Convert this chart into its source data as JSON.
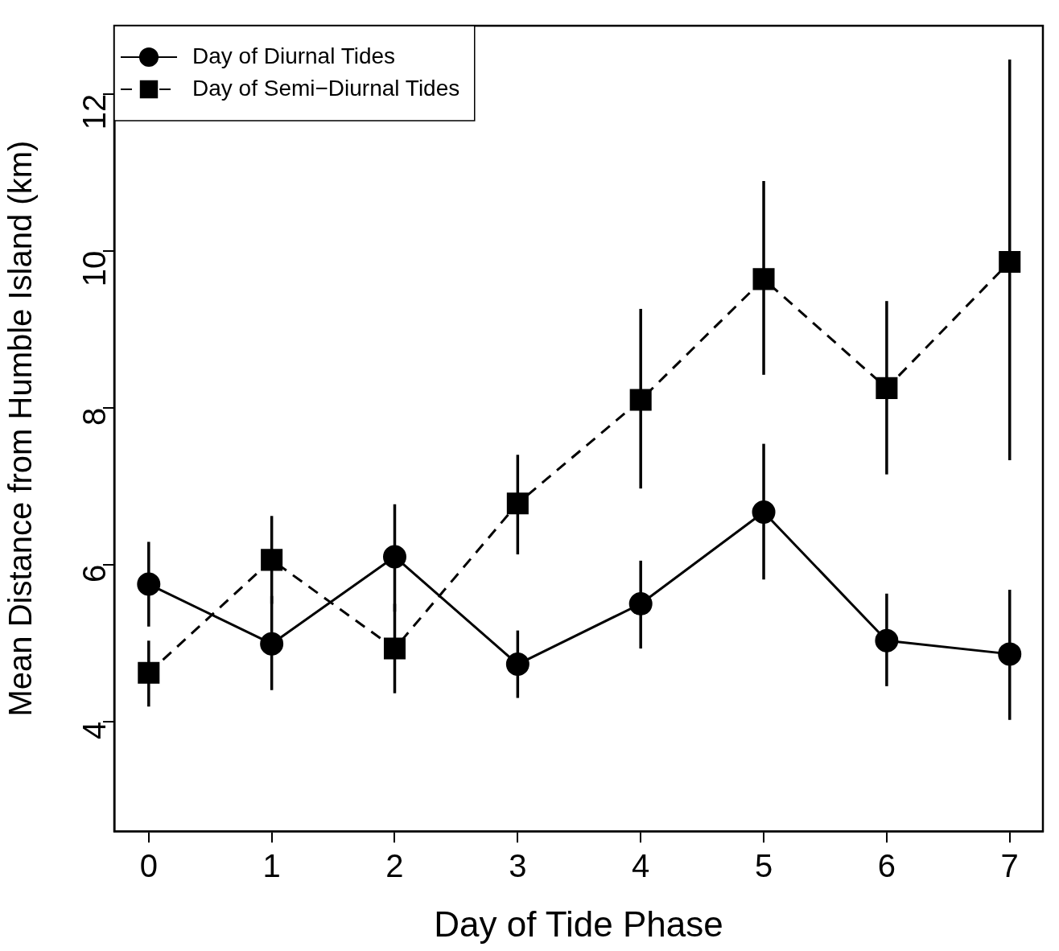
{
  "chart_data": {
    "type": "line",
    "xlabel": "Day of Tide Phase",
    "ylabel": "Mean Distance from Humble Island (km)",
    "x": [
      0,
      1,
      2,
      3,
      4,
      5,
      6,
      7
    ],
    "xlim": [
      -0.28,
      7.27
    ],
    "xticks": [
      0,
      1,
      2,
      3,
      4,
      5,
      6,
      7
    ],
    "ylim": [
      2.6,
      12.87
    ],
    "yticks": [
      4,
      6,
      8,
      10,
      12
    ],
    "grid": false,
    "legend": "top left",
    "series": [
      {
        "name": "Day of Diurnal Tides",
        "color": "#000000",
        "marker": "circle",
        "line_style": "solid",
        "values": [
          5.75,
          4.99,
          6.1,
          4.73,
          5.5,
          6.67,
          5.03,
          4.86
        ],
        "errors": [
          [
            5.21,
            6.29
          ],
          [
            4.4,
            5.6
          ],
          [
            5.4,
            6.77
          ],
          [
            4.3,
            5.16
          ],
          [
            4.93,
            6.05
          ],
          [
            5.81,
            7.54
          ],
          [
            4.45,
            5.63
          ],
          [
            4.02,
            5.68
          ]
        ]
      },
      {
        "name": "Day of Semi−Diurnal Tides",
        "color": "#000000",
        "marker": "square",
        "line_style": "dashed",
        "values": [
          4.62,
          6.06,
          4.93,
          6.78,
          8.1,
          9.64,
          8.25,
          9.86
        ],
        "errors": [
          [
            4.19,
            5.03
          ],
          [
            5.5,
            6.62
          ],
          [
            4.36,
            5.5
          ],
          [
            6.13,
            7.4
          ],
          [
            6.97,
            9.26
          ],
          [
            8.42,
            10.89
          ],
          [
            7.15,
            9.36
          ],
          [
            7.33,
            12.44
          ]
        ]
      }
    ]
  }
}
